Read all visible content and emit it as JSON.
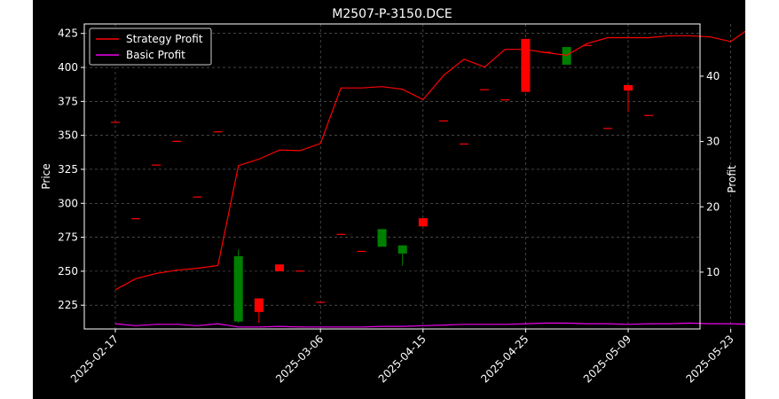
{
  "chart_data": {
    "type": "candlestick+line",
    "title": "M2507-P-3150.DCE",
    "ylabel_left": "Price",
    "ylabel_right": "Profit",
    "ylim_left": [
      207.5,
      432
    ],
    "ylim_right": [
      1.3,
      48
    ],
    "yticks_left": [
      225,
      250,
      275,
      300,
      325,
      350,
      375,
      400,
      425
    ],
    "yticks_right": [
      10,
      20,
      30,
      40
    ],
    "xticks": [
      {
        "index": 0,
        "label": "2025-02-17"
      },
      {
        "index": 10,
        "label": "2025-03-06"
      },
      {
        "index": 15,
        "label": "2025-04-15"
      },
      {
        "index": 20,
        "label": "2025-04-25"
      },
      {
        "index": 25,
        "label": "2025-05-09"
      },
      {
        "index": 30,
        "label": "2025-05-23"
      }
    ],
    "grid": true,
    "legend_position": "top-left",
    "colors": {
      "up": "#008000",
      "down": "#ff0000",
      "strategy": "#ff0000",
      "basic": "#ee00ee",
      "grid": "#888888"
    },
    "candles": [
      {
        "i": 0,
        "open": 360,
        "high": 360,
        "low": 360,
        "close": 360
      },
      {
        "i": 1,
        "open": 289,
        "high": 289,
        "low": 289,
        "close": 289
      },
      {
        "i": 2,
        "open": 328.5,
        "high": 328.5,
        "low": 328.5,
        "close": 328.5
      },
      {
        "i": 3,
        "open": 346,
        "high": 346,
        "low": 346,
        "close": 346
      },
      {
        "i": 4,
        "open": 305,
        "high": 305,
        "low": 305,
        "close": 305
      },
      {
        "i": 5,
        "open": 353,
        "high": 353,
        "low": 353,
        "close": 353
      },
      {
        "i": 6,
        "open": 213,
        "high": 266,
        "low": 212,
        "close": 261
      },
      {
        "i": 7,
        "open": 230,
        "high": 230,
        "low": 212,
        "close": 220
      },
      {
        "i": 8,
        "open": 255,
        "high": 255,
        "low": 250,
        "close": 250
      },
      {
        "i": 9,
        "open": 250.5,
        "high": 250.5,
        "low": 250.5,
        "close": 250.5
      },
      {
        "i": 10,
        "open": 227.5,
        "high": 227.5,
        "low": 227.5,
        "close": 227.5
      },
      {
        "i": 11,
        "open": 277.5,
        "high": 277.5,
        "low": 277.5,
        "close": 277.5
      },
      {
        "i": 12,
        "open": 265,
        "high": 265,
        "low": 265,
        "close": 265
      },
      {
        "i": 13,
        "open": 268,
        "high": 281,
        "low": 268,
        "close": 281
      },
      {
        "i": 14,
        "open": 263,
        "high": 269,
        "low": 254,
        "close": 269
      },
      {
        "i": 15,
        "open": 289,
        "high": 289,
        "low": 283,
        "close": 283
      },
      {
        "i": 16,
        "open": 361,
        "high": 361,
        "low": 361,
        "close": 361
      },
      {
        "i": 17,
        "open": 344,
        "high": 344,
        "low": 344,
        "close": 344
      },
      {
        "i": 18,
        "open": 384,
        "high": 384,
        "low": 384,
        "close": 384
      },
      {
        "i": 19,
        "open": 376.5,
        "high": 376.5,
        "low": 376.5,
        "close": 376.5
      },
      {
        "i": 20,
        "open": 421,
        "high": 421,
        "low": 382,
        "close": 382
      },
      {
        "i": 21,
        "open": 411.5,
        "high": 411.5,
        "low": 411.5,
        "close": 411.5
      },
      {
        "i": 22,
        "open": 402,
        "high": 415,
        "low": 402,
        "close": 415
      },
      {
        "i": 23,
        "open": 416.5,
        "high": 416.5,
        "low": 416.5,
        "close": 416.5
      },
      {
        "i": 24,
        "open": 355.5,
        "high": 355.5,
        "low": 355.5,
        "close": 355.5
      },
      {
        "i": 25,
        "open": 387,
        "high": 387,
        "low": 367,
        "close": 383
      },
      {
        "i": 26,
        "open": 365,
        "high": 365,
        "low": 365,
        "close": 365
      }
    ],
    "series": [
      {
        "name": "Strategy Profit",
        "axis": "right",
        "x": [
          0,
          1,
          2,
          3,
          4,
          5,
          6,
          7,
          8,
          9,
          10,
          11,
          12,
          13,
          14,
          15,
          16,
          17,
          18,
          19,
          20,
          21,
          22,
          23,
          24,
          25,
          26,
          27,
          28,
          29,
          30,
          31,
          32
        ],
        "values": [
          7.3,
          9.0,
          9.8,
          10.3,
          10.6,
          11.0,
          26.3,
          27.3,
          28.7,
          28.6,
          29.7,
          38.2,
          38.2,
          38.4,
          38.0,
          36.4,
          40.1,
          42.6,
          41.4,
          44.1,
          44.1,
          43.6,
          43.2,
          45.0,
          45.9,
          45.9,
          45.9,
          46.2,
          46.2,
          46.0,
          45.3,
          47.5,
          45.8
        ]
      },
      {
        "name": "Basic Profit",
        "axis": "right",
        "x": [
          0,
          1,
          2,
          3,
          4,
          5,
          6,
          7,
          8,
          9,
          10,
          11,
          12,
          13,
          14,
          15,
          16,
          17,
          18,
          19,
          20,
          21,
          22,
          23,
          24,
          25,
          26,
          27,
          28,
          29,
          30,
          31,
          32
        ],
        "values": [
          2.1,
          1.8,
          2.0,
          2.0,
          1.8,
          2.1,
          1.6,
          1.6,
          1.7,
          1.6,
          1.6,
          1.6,
          1.6,
          1.7,
          1.7,
          1.8,
          1.9,
          2.0,
          2.0,
          2.0,
          2.1,
          2.2,
          2.2,
          2.1,
          2.1,
          2.0,
          2.1,
          2.1,
          2.2,
          2.1,
          2.1,
          2.0,
          2.0
        ]
      }
    ],
    "strategy_profit_points": [
      [
        0,
        7.3
      ],
      [
        1,
        9.0
      ],
      [
        2,
        9.8
      ],
      [
        3,
        10.3
      ],
      [
        4,
        10.6
      ],
      [
        5,
        11.0
      ],
      [
        6,
        26.3
      ],
      [
        7,
        27.3
      ],
      [
        8,
        28.7
      ],
      [
        9,
        28.6
      ],
      [
        10,
        29.7
      ],
      [
        11,
        38.2
      ],
      [
        12,
        38.2
      ],
      [
        13,
        38.4
      ],
      [
        14,
        38.0
      ],
      [
        15,
        36.4
      ],
      [
        16,
        40.1
      ],
      [
        17,
        42.6
      ],
      [
        18,
        41.4
      ],
      [
        19,
        44.1
      ],
      [
        20,
        44.1
      ],
      [
        21,
        43.6
      ],
      [
        22,
        43.2
      ],
      [
        23,
        45.0
      ],
      [
        24,
        45.9
      ],
      [
        25,
        45.9
      ],
      [
        26,
        45.9
      ],
      [
        27,
        46.2
      ],
      [
        28,
        46.2
      ],
      [
        29,
        46.0
      ],
      [
        30,
        45.3
      ],
      [
        31,
        47.5
      ],
      [
        32,
        45.8
      ]
    ]
  }
}
